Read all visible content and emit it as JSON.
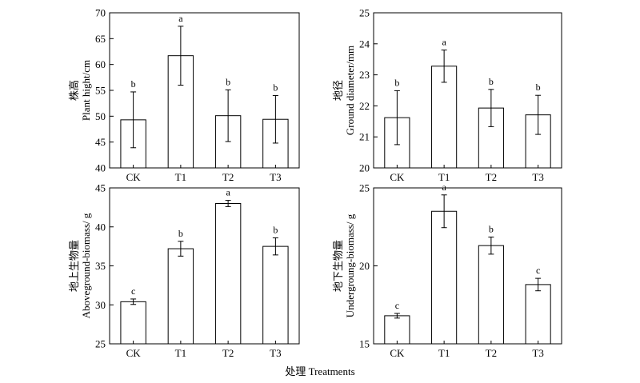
{
  "figure_xlabel": "处理 Treatments",
  "chart_data": [
    {
      "type": "bar",
      "ylabel_cn": "株高",
      "ylabel_en": "Plant hight/cm",
      "categories": [
        "CK",
        "T1",
        "T2",
        "T3"
      ],
      "values": [
        49.3,
        61.7,
        50.1,
        49.4
      ],
      "errors": [
        5.4,
        5.7,
        5.0,
        4.6
      ],
      "letters": [
        "b",
        "a",
        "b",
        "b"
      ],
      "ylim": [
        40,
        70
      ],
      "yticks": [
        40,
        45,
        50,
        55,
        60,
        65,
        70
      ]
    },
    {
      "type": "bar",
      "ylabel_cn": "地径",
      "ylabel_en": "Ground diameter/mm",
      "categories": [
        "CK",
        "T1",
        "T2",
        "T3"
      ],
      "values": [
        21.62,
        23.28,
        21.93,
        21.71
      ],
      "errors": [
        0.87,
        0.52,
        0.6,
        0.63
      ],
      "letters": [
        "b",
        "a",
        "b",
        "b"
      ],
      "ylim": [
        20,
        25
      ],
      "yticks": [
        20,
        21,
        22,
        23,
        24,
        25
      ]
    },
    {
      "type": "bar",
      "ylabel_cn": "地上生物量",
      "ylabel_en": "Aboveground-biomass/ g",
      "categories": [
        "CK",
        "T1",
        "T2",
        "T3"
      ],
      "values": [
        30.4,
        37.2,
        43.0,
        37.5
      ],
      "errors": [
        0.35,
        0.95,
        0.4,
        1.1
      ],
      "letters": [
        "c",
        "b",
        "a",
        "b"
      ],
      "ylim": [
        25,
        45
      ],
      "yticks": [
        25,
        30,
        35,
        40,
        45
      ]
    },
    {
      "type": "bar",
      "ylabel_cn": "地下生物量",
      "ylabel_en": "Undergroung-biomass/ g",
      "categories": [
        "CK",
        "T1",
        "T2",
        "T3"
      ],
      "values": [
        16.8,
        23.5,
        21.3,
        18.8
      ],
      "errors": [
        0.15,
        1.05,
        0.55,
        0.4
      ],
      "letters": [
        "c",
        "a",
        "b",
        "c"
      ],
      "ylim": [
        15,
        25
      ],
      "yticks": [
        15,
        20,
        25
      ]
    }
  ]
}
